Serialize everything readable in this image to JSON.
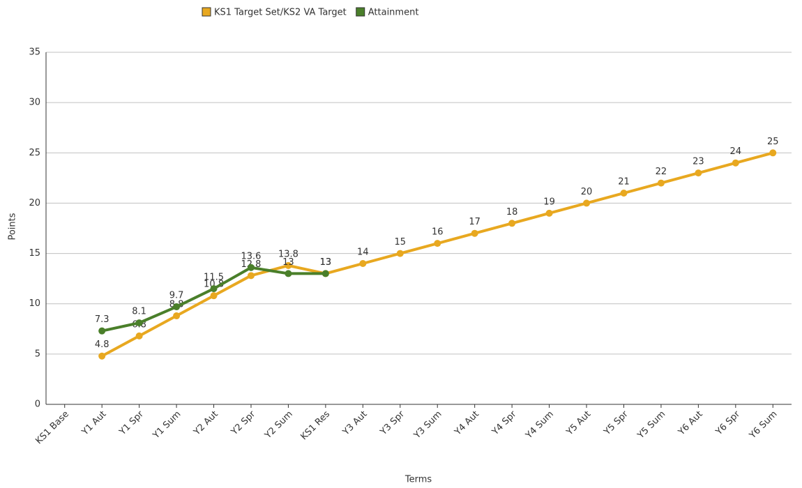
{
  "chart_data": {
    "type": "line",
    "xlabel": "Terms",
    "ylabel": "Points",
    "categories": [
      "KS1 Base",
      "Y1 Aut",
      "Y1 Spr",
      "Y1 Sum",
      "Y2 Aut",
      "Y2 Spr",
      "Y2 Sum",
      "KS1 Res",
      "Y3 Aut",
      "Y3 Spr",
      "Y3 Sum",
      "Y4 Aut",
      "Y4 Spr",
      "Y4 Sum",
      "Y5 Aut",
      "Y5 Spr",
      "Y5 Sum",
      "Y6 Aut",
      "Y6 Spr",
      "Y6 Sum"
    ],
    "series": [
      {
        "name": "KS1 Target Set/KS2 VA Target",
        "color": "#e8a820",
        "values": [
          null,
          4.8,
          6.8,
          8.8,
          10.8,
          12.8,
          13.8,
          13,
          14,
          15,
          16,
          17,
          18,
          19,
          20,
          21,
          22,
          23,
          24,
          25
        ]
      },
      {
        "name": "Attainment",
        "color": "#4a7f2a",
        "values": [
          null,
          7.3,
          8.1,
          9.7,
          11.5,
          13.6,
          13,
          13,
          null,
          null,
          null,
          null,
          null,
          null,
          null,
          null,
          null,
          null,
          null,
          null
        ]
      }
    ],
    "ylim": [
      0,
      35
    ],
    "yticks": [
      0,
      5,
      10,
      15,
      20,
      25,
      30,
      35
    ],
    "grid": true,
    "legend": "top"
  }
}
